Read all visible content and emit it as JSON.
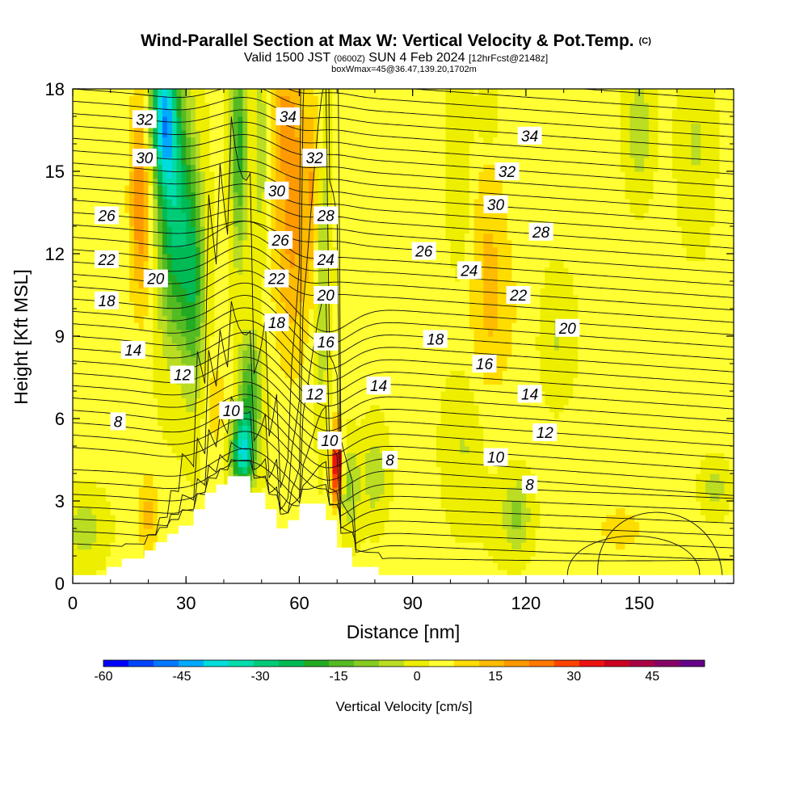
{
  "header": {
    "title_main": "Wind-Parallel Section at Max W: Vertical Velocity & Pot.Temp.",
    "title_copyright": "(C)",
    "valid_prefix": "Valid 1500 JST",
    "valid_utc": "(0600Z)",
    "valid_date": "SUN 4 Feb 2024",
    "forecast": "[12hrFcst@2148z]",
    "box_info": "boxWmax=45@36.47,139.20,1702m"
  },
  "chart_data": {
    "type": "heatmap",
    "xlabel": "Distance [nm]",
    "ylabel": "Height [Kft MSL]",
    "xlim": [
      0,
      175
    ],
    "ylim": [
      0,
      18
    ],
    "x_ticks": [
      "0",
      "30",
      "60",
      "90",
      "120",
      "150"
    ],
    "y_ticks": [
      "0",
      "3",
      "6",
      "9",
      "12",
      "15",
      "18"
    ],
    "colorbar": {
      "label": "Vertical Velocity [cm/s]",
      "range": [
        -60,
        55
      ],
      "tick_labels": [
        "-60",
        "-45",
        "-30",
        "-15",
        "0",
        "15",
        "30",
        "45"
      ],
      "colors": [
        "#0000ff",
        "#0044ff",
        "#0077ff",
        "#00aaff",
        "#00dddd",
        "#00ddaa",
        "#00cc77",
        "#00bb55",
        "#22aa22",
        "#55bb22",
        "#88cc22",
        "#bbdd22",
        "#eeee00",
        "#ffff33",
        "#ffdd00",
        "#ffbb00",
        "#ff9900",
        "#ff7700",
        "#ff4400",
        "#ee1111",
        "#cc0022",
        "#aa0044",
        "#880066",
        "#660088"
      ]
    },
    "background_w": 3,
    "terrain_kft": [
      [
        0,
        0.3
      ],
      [
        9,
        0.3
      ],
      [
        9,
        0.6
      ],
      [
        13,
        0.6
      ],
      [
        13,
        0.9
      ],
      [
        19,
        0.9
      ],
      [
        19,
        1.2
      ],
      [
        22,
        1.2
      ],
      [
        22,
        1.5
      ],
      [
        25,
        1.5
      ],
      [
        25,
        1.8
      ],
      [
        28,
        1.8
      ],
      [
        28,
        2.1
      ],
      [
        32,
        2.1
      ],
      [
        32,
        2.7
      ],
      [
        35,
        2.7
      ],
      [
        35,
        3.3
      ],
      [
        38,
        3.3
      ],
      [
        38,
        3.6
      ],
      [
        41,
        3.6
      ],
      [
        41,
        3.9
      ],
      [
        47,
        3.9
      ],
      [
        47,
        3.3
      ],
      [
        51,
        3.3
      ],
      [
        51,
        2.7
      ],
      [
        54,
        2.7
      ],
      [
        54,
        2.0
      ],
      [
        57,
        2.0
      ],
      [
        57,
        2.3
      ],
      [
        60,
        2.3
      ],
      [
        60,
        2.9
      ],
      [
        67,
        2.9
      ],
      [
        67,
        2.3
      ],
      [
        70,
        2.3
      ],
      [
        70,
        1.3
      ],
      [
        74,
        1.3
      ],
      [
        74,
        0.6
      ],
      [
        81,
        0.6
      ],
      [
        81,
        0.3
      ],
      [
        175,
        0.3
      ]
    ],
    "w_features": [
      {
        "x": 27,
        "z": 13.5,
        "sx": 4.5,
        "sz": 4.5,
        "w": -30
      },
      {
        "x": 24,
        "z": 17,
        "sx": 3.5,
        "sz": 2.5,
        "w": -38
      },
      {
        "x": 32,
        "z": 11,
        "sx": 3,
        "sz": 4,
        "w": -20
      },
      {
        "x": 18,
        "z": 14,
        "sx": 3,
        "sz": 4,
        "w": 18
      },
      {
        "x": 45,
        "z": 4.8,
        "sx": 3,
        "sz": 1.3,
        "w": -38
      },
      {
        "x": 47,
        "z": 7,
        "sx": 3,
        "sz": 2,
        "w": -20
      },
      {
        "x": 44,
        "z": 16,
        "sx": 2,
        "sz": 4,
        "w": -22
      },
      {
        "x": 50,
        "z": 16,
        "sx": 2,
        "sz": 4,
        "w": -10
      },
      {
        "x": 58,
        "z": 13,
        "sx": 5,
        "sz": 5,
        "w": 15
      },
      {
        "x": 64,
        "z": 14.5,
        "sx": 2.5,
        "sz": 3.5,
        "w": 12
      },
      {
        "x": 56,
        "z": 17,
        "sx": 4,
        "sz": 2,
        "w": 10
      },
      {
        "x": 66,
        "z": 12,
        "sx": 2,
        "sz": 5,
        "w": -15
      },
      {
        "x": 70,
        "z": 4.3,
        "sx": 1.5,
        "sz": 1.4,
        "w": 40
      },
      {
        "x": 73,
        "z": 3.5,
        "sx": 3,
        "sz": 1.5,
        "w": -12
      },
      {
        "x": 80,
        "z": 4,
        "sx": 3,
        "sz": 1.5,
        "w": -10
      },
      {
        "x": 38,
        "z": 6.5,
        "sx": 3,
        "sz": 1.5,
        "w": 8
      },
      {
        "x": 3,
        "z": 2,
        "sx": 5,
        "sz": 1.2,
        "w": -8
      },
      {
        "x": 20,
        "z": 2.5,
        "sx": 3,
        "sz": 1.5,
        "w": 10
      },
      {
        "x": 110,
        "z": 13,
        "sx": 5,
        "sz": 6,
        "w": 7
      },
      {
        "x": 103,
        "z": 15,
        "sx": 3,
        "sz": 4,
        "w": -6
      },
      {
        "x": 110,
        "z": 17,
        "sx": 3,
        "sz": 1.5,
        "w": -10
      },
      {
        "x": 150,
        "z": 16.5,
        "sx": 3,
        "sz": 2,
        "w": -10
      },
      {
        "x": 165,
        "z": 16,
        "sx": 4,
        "sz": 3,
        "w": -6
      },
      {
        "x": 128,
        "z": 9,
        "sx": 4,
        "sz": 2,
        "w": -6
      },
      {
        "x": 104,
        "z": 5,
        "sx": 5,
        "sz": 2.5,
        "w": -6
      },
      {
        "x": 115,
        "z": 2.5,
        "sx": 5,
        "sz": 1.5,
        "w": -4
      },
      {
        "x": 118,
        "z": 2.5,
        "sx": 3,
        "sz": 1.2,
        "w": -10
      },
      {
        "x": 145,
        "z": 2,
        "sx": 10,
        "sz": 1.5,
        "w": 5
      },
      {
        "x": 170,
        "z": 3.5,
        "sx": 3,
        "sz": 0.8,
        "w": -10
      },
      {
        "x": 112,
        "z": 10,
        "sx": 8,
        "sz": 3,
        "w": 5
      }
    ],
    "theta_labels": [
      {
        "text": "32",
        "x": 19,
        "z": 16.9
      },
      {
        "text": "34",
        "x": 57,
        "z": 17.0
      },
      {
        "text": "34",
        "x": 121,
        "z": 16.3
      },
      {
        "text": "30",
        "x": 19,
        "z": 15.5
      },
      {
        "text": "32",
        "x": 64,
        "z": 15.5
      },
      {
        "text": "32",
        "x": 115,
        "z": 15.0
      },
      {
        "text": "30",
        "x": 54,
        "z": 14.3
      },
      {
        "text": "30",
        "x": 112,
        "z": 13.8
      },
      {
        "text": "26",
        "x": 9,
        "z": 13.4
      },
      {
        "text": "28",
        "x": 67,
        "z": 13.4
      },
      {
        "text": "28",
        "x": 124,
        "z": 12.8
      },
      {
        "text": "26",
        "x": 55,
        "z": 12.5
      },
      {
        "text": "26",
        "x": 93,
        "z": 12.1
      },
      {
        "text": "22",
        "x": 9,
        "z": 11.8
      },
      {
        "text": "24",
        "x": 67,
        "z": 11.8
      },
      {
        "text": "24",
        "x": 105,
        "z": 11.4
      },
      {
        "text": "20",
        "x": 22,
        "z": 11.1
      },
      {
        "text": "22",
        "x": 54,
        "z": 11.1
      },
      {
        "text": "20",
        "x": 67,
        "z": 10.5
      },
      {
        "text": "22",
        "x": 118,
        "z": 10.5
      },
      {
        "text": "18",
        "x": 9,
        "z": 10.3
      },
      {
        "text": "18",
        "x": 54,
        "z": 9.5
      },
      {
        "text": "20",
        "x": 131,
        "z": 9.3
      },
      {
        "text": "16",
        "x": 67,
        "z": 8.8
      },
      {
        "text": "18",
        "x": 96,
        "z": 8.9
      },
      {
        "text": "14",
        "x": 16,
        "z": 8.5
      },
      {
        "text": "16",
        "x": 109,
        "z": 8.0
      },
      {
        "text": "12",
        "x": 29,
        "z": 7.6
      },
      {
        "text": "14",
        "x": 81,
        "z": 7.2
      },
      {
        "text": "12",
        "x": 64,
        "z": 6.9
      },
      {
        "text": "14",
        "x": 121,
        "z": 6.9
      },
      {
        "text": "10",
        "x": 42,
        "z": 6.3
      },
      {
        "text": "8",
        "x": 12,
        "z": 5.9
      },
      {
        "text": "12",
        "x": 125,
        "z": 5.5
      },
      {
        "text": "10",
        "x": 68,
        "z": 5.2
      },
      {
        "text": "8",
        "x": 84,
        "z": 4.5
      },
      {
        "text": "10",
        "x": 112,
        "z": 4.6
      },
      {
        "text": "8",
        "x": 121,
        "z": 3.6
      }
    ]
  }
}
